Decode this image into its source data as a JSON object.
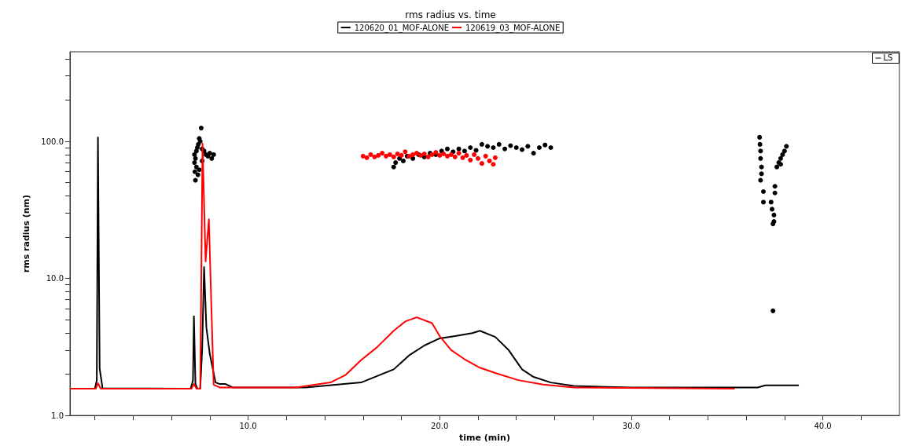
{
  "chart_data": {
    "type": "line",
    "title": "rms radius vs. time",
    "xlabel": "time (min)",
    "ylabel": "rms radius (nm)",
    "log": "y",
    "grid": false,
    "legend": "top",
    "annotations": [
      "LS"
    ],
    "xlim": [
      0.7,
      44
    ],
    "xticks": [
      {
        "value": 2,
        "label": null
      },
      {
        "value": 4,
        "label": null
      },
      {
        "value": 6,
        "label": null
      },
      {
        "value": 8,
        "label": null
      },
      {
        "value": 10,
        "label": "10.0"
      },
      {
        "value": 12,
        "label": null
      },
      {
        "value": 14,
        "label": null
      },
      {
        "value": 16,
        "label": null
      },
      {
        "value": 18,
        "label": null
      },
      {
        "value": 20,
        "label": "20.0"
      },
      {
        "value": 22,
        "label": null
      },
      {
        "value": 24,
        "label": null
      },
      {
        "value": 26,
        "label": null
      },
      {
        "value": 28,
        "label": null
      },
      {
        "value": 30,
        "label": "30.0"
      },
      {
        "value": 32,
        "label": null
      },
      {
        "value": 34,
        "label": null
      },
      {
        "value": 36,
        "label": null
      },
      {
        "value": 38,
        "label": null
      },
      {
        "value": 40,
        "label": "40.0"
      },
      {
        "value": 42,
        "label": null
      }
    ],
    "ylim": [
      1,
      450
    ],
    "yticks": [
      {
        "value": 1,
        "label": "1.0"
      },
      {
        "value": 2,
        "label": null
      },
      {
        "value": 3,
        "label": null
      },
      {
        "value": 4,
        "label": null
      },
      {
        "value": 5,
        "label": null
      },
      {
        "value": 6,
        "label": null
      },
      {
        "value": 7,
        "label": null
      },
      {
        "value": 8,
        "label": null
      },
      {
        "value": 9,
        "label": null
      },
      {
        "value": 10,
        "label": "10.0"
      },
      {
        "value": 20,
        "label": null
      },
      {
        "value": 30,
        "label": null
      },
      {
        "value": 40,
        "label": null
      },
      {
        "value": 50,
        "label": null
      },
      {
        "value": 60,
        "label": null
      },
      {
        "value": 70,
        "label": null
      },
      {
        "value": 80,
        "label": null
      },
      {
        "value": 90,
        "label": null
      },
      {
        "value": 100,
        "label": "100.0"
      },
      {
        "value": 200,
        "label": null
      },
      {
        "value": 300,
        "label": null
      },
      {
        "value": 400,
        "label": null
      }
    ],
    "series": [
      {
        "name": "120620_01_MOF-ALONE",
        "marker": "none",
        "line_style": "solid",
        "color": "#000000",
        "x": [
          0.7,
          2.0,
          2.1,
          2.16,
          2.25,
          2.4,
          7.0,
          7.12,
          7.17,
          7.25,
          7.35,
          7.5,
          7.6,
          7.7,
          7.82,
          8.0,
          8.3,
          8.5,
          8.8,
          9.2,
          13.0,
          15.9,
          17.6,
          18.4,
          19.2,
          20.0,
          20.8,
          21.7,
          22.1,
          22.9,
          23.6,
          24.3,
          24.9,
          25.8,
          27.0,
          30.0,
          36.6,
          37.0,
          38.0,
          38.75
        ],
        "values": [
          1.57,
          1.57,
          1.8,
          107,
          2.2,
          1.58,
          1.57,
          1.8,
          5.3,
          1.7,
          1.57,
          1.57,
          3.0,
          12.1,
          4.4,
          2.8,
          1.74,
          1.7,
          1.7,
          1.6,
          1.6,
          1.74,
          2.17,
          2.74,
          3.24,
          3.65,
          3.79,
          3.99,
          4.15,
          3.74,
          3.0,
          2.17,
          1.91,
          1.74,
          1.64,
          1.6,
          1.6,
          1.66,
          1.66,
          1.66
        ]
      },
      {
        "name": "120619_03_MOF-ALONE",
        "marker": "none",
        "line_style": "solid",
        "color": "#ff0000",
        "x": [
          0.7,
          2.05,
          2.16,
          2.3,
          7.05,
          7.17,
          7.3,
          7.5,
          7.62,
          7.78,
          7.95,
          8.2,
          8.5,
          12.5,
          14.3,
          15.1,
          15.9,
          16.7,
          17.6,
          18.2,
          18.8,
          19.6,
          20.0,
          20.6,
          21.3,
          22.1,
          22.9,
          24.1,
          25.4,
          27.0,
          35.4
        ],
        "values": [
          1.57,
          1.57,
          1.72,
          1.57,
          1.57,
          1.7,
          1.57,
          1.57,
          96,
          13.3,
          27,
          1.68,
          1.6,
          1.6,
          1.74,
          1.98,
          2.54,
          3.12,
          4.15,
          4.85,
          5.2,
          4.72,
          3.79,
          3.0,
          2.57,
          2.23,
          2.04,
          1.81,
          1.68,
          1.6,
          1.57
        ]
      },
      {
        "type": "scatter",
        "marker": "circle",
        "color": "#000000",
        "x": [
          7.2,
          7.2,
          7.22,
          7.25,
          7.25,
          7.3,
          7.3,
          7.35,
          7.38,
          7.4,
          7.45,
          7.5,
          7.55,
          7.6,
          7.7,
          7.8,
          7.9,
          8.0,
          8.1,
          8.2,
          7.45,
          7.6,
          17.6,
          17.7,
          17.9,
          18.1,
          18.3,
          18.6,
          18.9,
          19.2,
          19.5,
          19.8,
          20.1,
          20.4,
          20.7,
          21.0,
          21.3,
          21.6,
          21.9,
          22.2,
          22.5,
          22.8,
          23.1,
          23.4,
          23.7,
          24.0,
          24.3,
          24.6,
          24.9,
          25.2,
          25.5,
          25.8,
          36.7,
          36.72,
          36.75,
          36.75,
          36.8,
          36.8,
          36.75,
          36.9,
          36.9,
          37.3,
          37.35,
          37.45,
          37.4,
          37.45,
          37.4,
          37.5,
          37.5,
          37.6,
          37.7,
          37.8,
          37.8,
          37.9,
          38.0,
          38.1
        ],
        "values": [
          80,
          70,
          60,
          52,
          75,
          85,
          65,
          90,
          57,
          95,
          105,
          100,
          125,
          88,
          85,
          80,
          78,
          82,
          75,
          80,
          62,
          72,
          65,
          70,
          75,
          72,
          78,
          75,
          80,
          77,
          82,
          80,
          85,
          88,
          84,
          88,
          85,
          90,
          86,
          95,
          92,
          90,
          95,
          88,
          93,
          90,
          87,
          92,
          82,
          90,
          94,
          90,
          107,
          95,
          85,
          75,
          65,
          58,
          52,
          43,
          36,
          36,
          32,
          29,
          25,
          26,
          5.8,
          47,
          42,
          65,
          70,
          75,
          68,
          80,
          85,
          92
        ]
      },
      {
        "type": "scatter",
        "marker": "circle",
        "color": "#ff0000",
        "x": [
          16.0,
          16.2,
          16.4,
          16.6,
          16.8,
          17.0,
          17.2,
          17.4,
          17.6,
          17.8,
          18.0,
          18.2,
          18.4,
          18.6,
          18.8,
          19.0,
          19.2,
          19.4,
          19.6,
          19.8,
          20.0,
          20.2,
          20.4,
          20.6,
          20.8,
          21.0,
          21.2,
          21.4,
          21.6,
          21.8,
          22.0,
          22.2,
          22.4,
          22.6,
          22.8,
          22.9
        ],
        "values": [
          78,
          76,
          80,
          77,
          79,
          82,
          78,
          80,
          77,
          81,
          79,
          84,
          78,
          80,
          82,
          79,
          81,
          77,
          80,
          83,
          79,
          81,
          78,
          80,
          77,
          82,
          76,
          79,
          73,
          80,
          75,
          69,
          78,
          72,
          68,
          76
        ]
      }
    ]
  }
}
